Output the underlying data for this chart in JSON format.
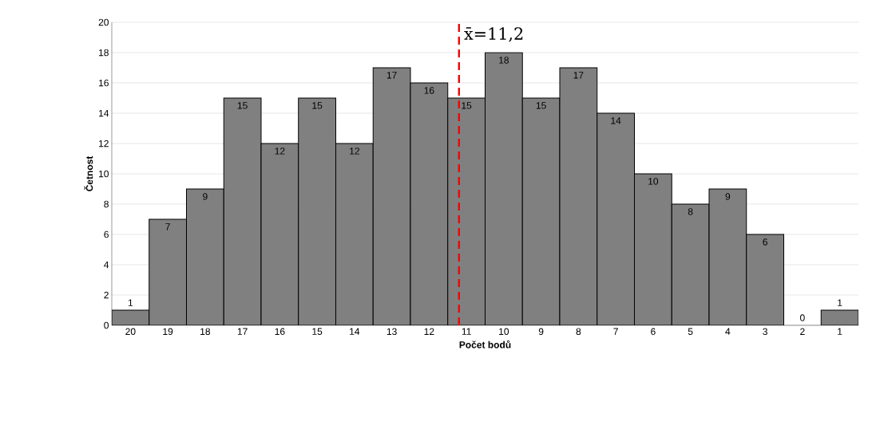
{
  "chart_data": {
    "type": "bar",
    "xlabel": "Počet bodů",
    "ylabel": "Četnost",
    "x": [
      20,
      19,
      18,
      17,
      16,
      15,
      14,
      13,
      12,
      11,
      10,
      9,
      8,
      7,
      6,
      5,
      4,
      3,
      2,
      1
    ],
    "values": [
      1,
      7,
      9,
      15,
      12,
      15,
      12,
      17,
      16,
      15,
      18,
      15,
      17,
      14,
      10,
      8,
      9,
      6,
      0,
      1
    ],
    "color": "#808080",
    "xlim": [
      20.5,
      0.5
    ],
    "xticks": [
      20,
      19,
      18,
      17,
      16,
      15,
      14,
      13,
      12,
      11,
      10,
      9,
      8,
      7,
      6,
      5,
      4,
      3,
      2,
      1
    ],
    "ylim": [
      0,
      20
    ],
    "yticks": [
      0,
      2,
      4,
      6,
      8,
      10,
      12,
      14,
      16,
      18,
      20
    ],
    "grid": "y",
    "data_labels": true,
    "ref_lines": [
      {
        "axis": "x",
        "value": 11.2,
        "label": "x̄=11,2",
        "color": "#ff0000",
        "line_style": "dashed"
      }
    ]
  }
}
